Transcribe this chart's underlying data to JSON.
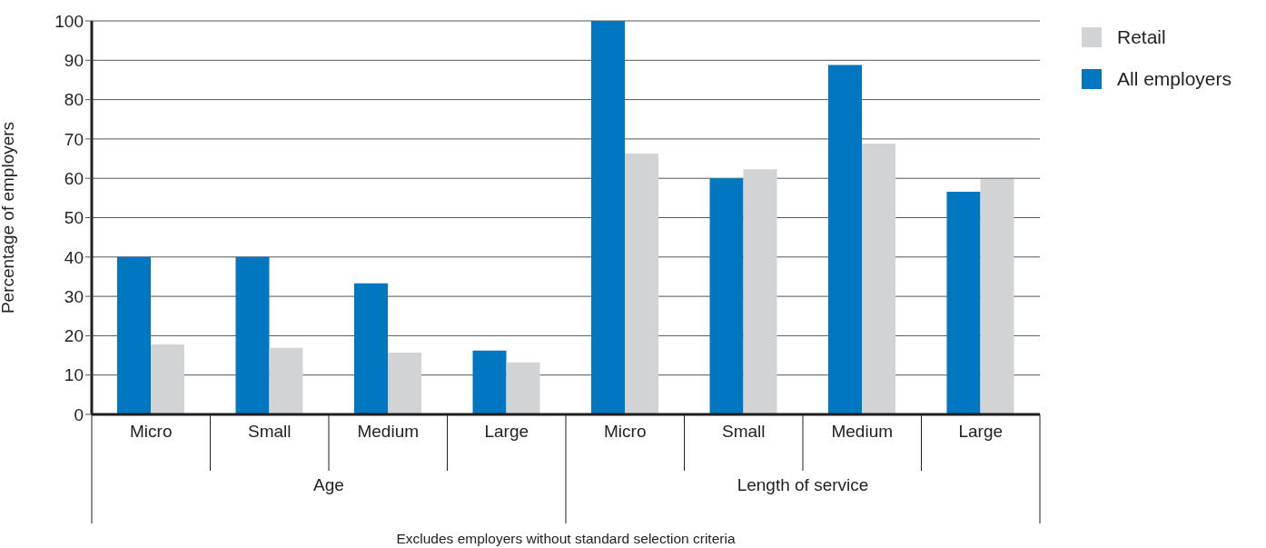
{
  "chart_data": {
    "type": "bar",
    "ylabel": "Percentage of employers",
    "categories": [
      "Micro",
      "Small",
      "Medium",
      "Large",
      "Micro",
      "Small",
      "Medium",
      "Large"
    ],
    "series": [
      {
        "name": "All employers",
        "color": "#0077c0",
        "values": [
          40,
          40,
          33.3,
          16.2,
          100,
          60,
          88.8,
          56.6
        ]
      },
      {
        "name": "Retail",
        "color": "#d1d3d4",
        "values": [
          17.8,
          16.9,
          15.7,
          13.2,
          66.3,
          62.3,
          68.8,
          59.8
        ]
      }
    ],
    "ylim": [
      0,
      100
    ],
    "yticks": [
      0,
      10,
      20,
      30,
      40,
      50,
      60,
      70,
      80,
      90,
      100
    ],
    "grid": "y",
    "legend": "top right",
    "annotations": [
      "Age",
      "Length of service",
      "Excludes employers without standard selection criteria"
    ]
  }
}
